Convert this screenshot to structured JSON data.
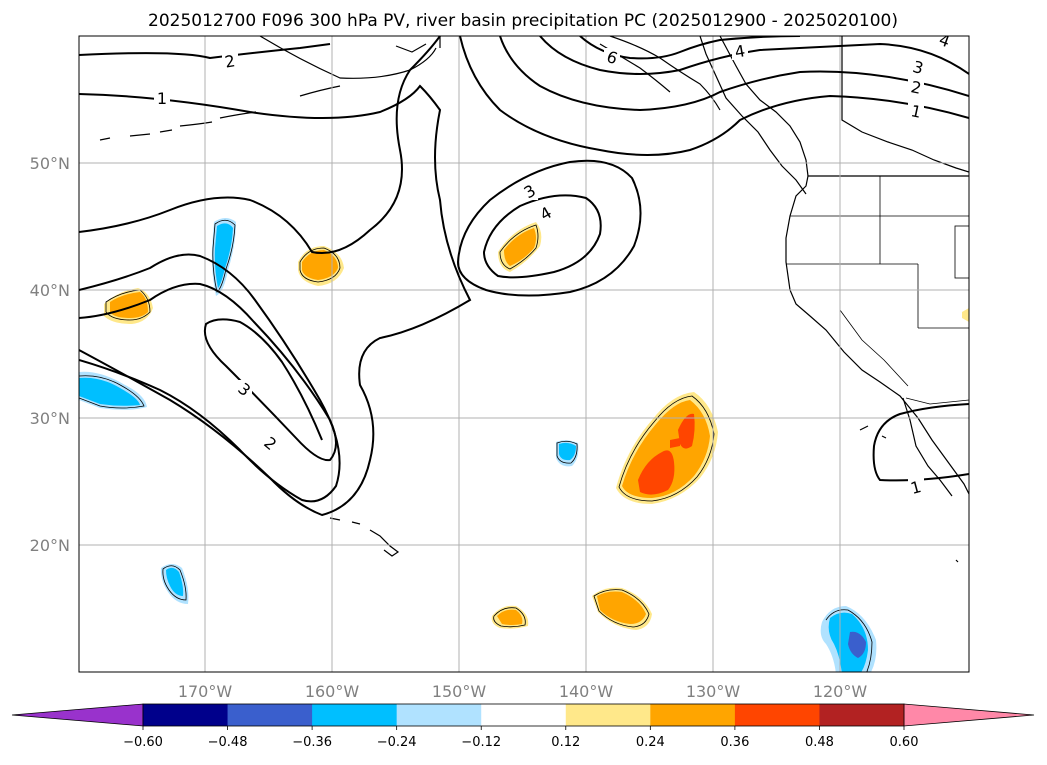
{
  "title": "2025012700 F096 300 hPa PV, river basin precipitation PC (2025012900 - 2025020100)",
  "map": {
    "lat_labels": [
      "50°N",
      "40°N",
      "30°N",
      "20°N"
    ],
    "lon_labels": [
      "170°W",
      "160°W",
      "150°W",
      "140°W",
      "130°W",
      "120°W"
    ],
    "pv_contour_labels": [
      "1",
      "2",
      "3",
      "4",
      "6"
    ],
    "pv_line_color": "#000000",
    "grid_color": "#b0b0b0"
  },
  "colorbar": {
    "tick_labels": [
      "−0.60",
      "−0.48",
      "−0.36",
      "−0.24",
      "−0.12",
      "0.12",
      "0.24",
      "0.36",
      "0.48",
      "0.60"
    ],
    "colors": [
      "#9932cc",
      "#00008b",
      "#3a5fcd",
      "#00bfff",
      "#b0e2ff",
      "#ffffff",
      "#ffe88a",
      "#ffa500",
      "#ff4500",
      "#b22222",
      "#ff88a8"
    ],
    "extend": "both"
  }
}
